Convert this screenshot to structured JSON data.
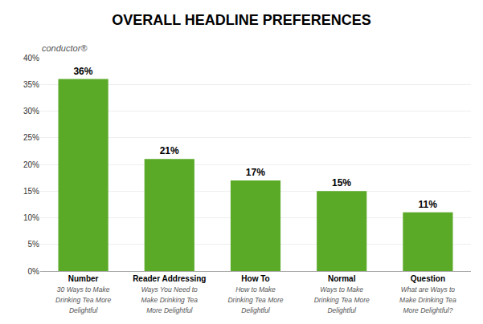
{
  "chart_data": {
    "type": "bar",
    "title": "OVERALL HEADLINE PREFERENCES",
    "categories": [
      "Number",
      "Reader Addressing",
      "How To",
      "Normal",
      "Question"
    ],
    "values": [
      36,
      21,
      17,
      15,
      11
    ],
    "value_labels": [
      "36%",
      "21%",
      "17%",
      "15%",
      "11%"
    ],
    "data_labels": true,
    "color": "#5aaa28",
    "ylim": [
      0,
      40
    ],
    "yticks": [
      {
        "value": 0,
        "label": "0%"
      },
      {
        "value": 5,
        "label": "5%"
      },
      {
        "value": 10,
        "label": "10%"
      },
      {
        "value": 15,
        "label": "15%"
      },
      {
        "value": 20,
        "label": "20%"
      },
      {
        "value": 25,
        "label": "25%"
      },
      {
        "value": 30,
        "label": "30%"
      },
      {
        "value": 35,
        "label": "35%"
      },
      {
        "value": 40,
        "label": "40%"
      }
    ],
    "grid": true,
    "annotations": [
      {
        "category": "Number",
        "text": "30 Ways to Make\nDrinking Tea More\nDelightful"
      },
      {
        "category": "Reader Addressing",
        "text": "Ways You Need to\nMake Drinking Tea\nMore Delightful"
      },
      {
        "category": "How To",
        "text": "How to Make\nDrinking Tea More\nDelightful"
      },
      {
        "category": "Normal",
        "text": "Ways to Make\nDrinking Tea More\nDelightful"
      },
      {
        "category": "Question",
        "text": "What are Ways to\nMake Drinking Tea\nMore Delightful?"
      },
      {
        "text": "conductor®"
      }
    ]
  }
}
